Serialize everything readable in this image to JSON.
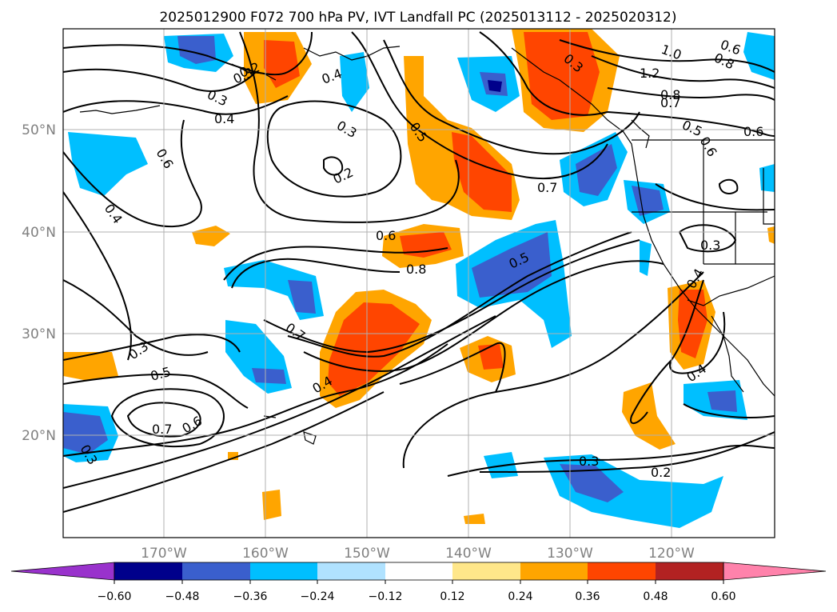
{
  "title": "2025012900 F072 700 hPa PV, IVT Landfall PC (2025013112 - 2025020312)",
  "map": {
    "lon_labels": [
      "170°W",
      "160°W",
      "150°W",
      "140°W",
      "130°W",
      "120°W"
    ],
    "lat_labels": [
      "50°N",
      "40°N",
      "30°N",
      "20°N"
    ]
  },
  "colorbar": {
    "tick_labels": [
      "−0.60",
      "−0.48",
      "−0.36",
      "−0.24",
      "−0.12",
      "0.12",
      "0.24",
      "0.36",
      "0.48",
      "0.60"
    ],
    "colors": [
      "#9932cc",
      "#00008b",
      "#3a5fcd",
      "#00bfff",
      "#b0e2ff",
      "#ffffff",
      "#ffe78a",
      "#ffa500",
      "#ff4500",
      "#b22222",
      "#ff82ab"
    ]
  },
  "contour_labels": [
    "0.3",
    "0.4",
    "0.3",
    "0.2",
    "0.4",
    "0.3",
    "0.6",
    "0.4",
    "0.2",
    "0.5",
    "0.7",
    "1.0",
    "0.6",
    "0.8",
    "1.2",
    "0.8",
    "0.7",
    "0.5",
    "0.6",
    "0.6",
    "0.6",
    "0.8",
    "0.5",
    "0.3",
    "0.4",
    "0.7",
    "0.3",
    "0.5",
    "0.7",
    "0.6",
    "0.4",
    "0.3",
    "0.4",
    "0.3",
    "0.2",
    "0.3"
  ],
  "chart_data": {
    "type": "map",
    "fill_variable": "IVT Landfall PC",
    "contour_variable": "700 hPa PV",
    "lon_range": [
      -180,
      -110
    ],
    "lat_range": [
      10,
      60
    ],
    "fill_levels": [
      -0.6,
      -0.48,
      -0.36,
      -0.24,
      -0.12,
      0.12,
      0.24,
      0.36,
      0.48,
      0.6
    ],
    "fill_colors": [
      "#9932cc",
      "#00008b",
      "#3a5fcd",
      "#00bfff",
      "#b0e2ff",
      "#ffffff",
      "#ffe78a",
      "#ffa500",
      "#ff4500",
      "#b22222",
      "#ff82ab"
    ]
  }
}
